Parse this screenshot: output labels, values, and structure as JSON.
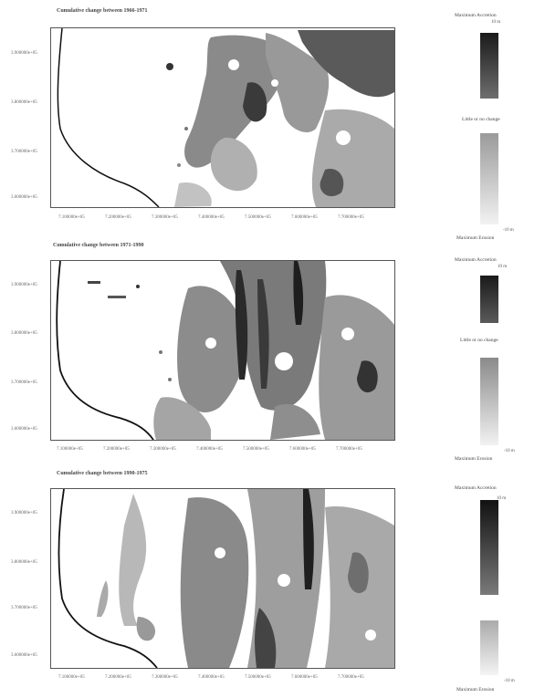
{
  "panels": [
    {
      "title": "Cumulative change between 1966-1971",
      "yticks": [
        "3.900000e+05",
        "3.800000e+05",
        "3.700000e+05",
        "3.600000e+05"
      ],
      "xticks": [
        "7.100000e+05",
        "7.200000e+05",
        "7.300000e+05",
        "7.400000e+05",
        "7.500000e+05",
        "7.600000e+05",
        "7.700000e+05"
      ]
    },
    {
      "title": "Cumulative change between 1971-1990",
      "yticks": [
        "3.900000e+05",
        "3.800000e+05",
        "3.700000e+05",
        "3.600000e+05"
      ],
      "xticks": [
        "7.100000e+05",
        "7.200000e+05",
        "7.300000e+05",
        "7.400000e+05",
        "7.500000e+05",
        "7.600000e+05",
        "7.700000e+05"
      ]
    },
    {
      "title": "Cumulative change between 1990-1975",
      "yticks": [
        "3.900000e+05",
        "3.800000e+05",
        "3.700000e+05",
        "3.600000e+05"
      ],
      "xticks": [
        "7.100000e+05",
        "7.200000e+05",
        "7.300000e+05",
        "7.400000e+05",
        "7.500000e+05",
        "7.600000e+05",
        "7.700000e+05"
      ]
    }
  ],
  "legends": [
    {
      "top_label": "Maximum Accretion",
      "top_value": "10 m",
      "mid_label": "Little or no change",
      "bottom_value": "-10 m",
      "bottom_label": "Maximum Erosion"
    },
    {
      "top_label": "Maximum Accretion",
      "top_value": "10 m",
      "mid_label": "Little or no change",
      "bottom_value": "-10 m",
      "bottom_label": "Maximum Erosion"
    },
    {
      "top_label": "Maximum Accretion",
      "top_value": "10 m",
      "mid_label": "",
      "bottom_value": "-10 m",
      "bottom_label": "Maximum Erosion"
    }
  ],
  "colors": {
    "max": "#1a1a1a",
    "mid": "#6e6e6e",
    "light": "#b5b5b5",
    "coast": "#111111"
  }
}
